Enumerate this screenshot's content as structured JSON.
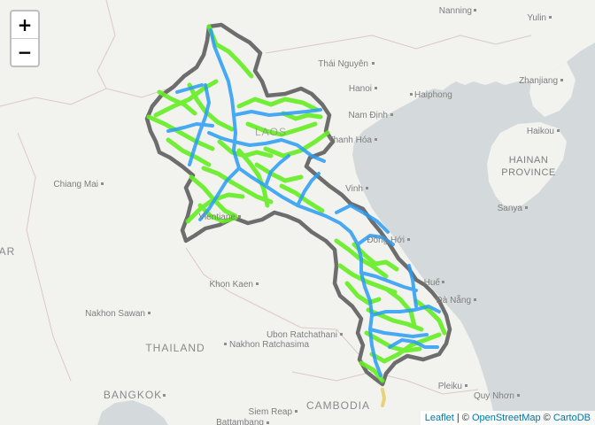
{
  "zoom": {
    "in_label": "+",
    "out_label": "−"
  },
  "attribution": {
    "leaflet": "Leaflet",
    "sep1": " | © ",
    "osm": "OpenStreetMap",
    "sep2": " © ",
    "carto": "CartoDB"
  },
  "labels": {
    "nanning": "Nanning",
    "yulin": "Yulin",
    "thai_nguyen": "Thái Nguyên",
    "hanoi": "Hanoi",
    "haiphong": "Haiphong",
    "zhanjiang": "Zhanjiang",
    "nam_dinh": "Nam Định",
    "haikou": "Haikou",
    "hainan_1": "HAINAN",
    "hainan_2": "PROVINCE",
    "thanh_hoa": "Thanh Hóa",
    "chiang_mai": "Chiang Mai",
    "vinh": "Vinh",
    "sanya": "Sanya",
    "vientiane": "Vientiane",
    "dong_hoi": "Đồng Hới",
    "khon_kaen": "Khon Kaen",
    "hue": "Huế",
    "da_nang": "Đà Nẵng",
    "nakhon_sawan": "Nakhon Sawan",
    "ubon": "Ubon Ratchathani",
    "thailand": "THAILAND",
    "nakhon_ratchasima": "Nakhon Ratchasima",
    "pleiku": "Pleiku",
    "quy_nhon": "Quy Nhơn",
    "bangkok": "BANGKOK",
    "siem_reap": "Siem Reap",
    "cambodia": "CAMBODIA",
    "battambang": "Battambang",
    "laos": "LAOS",
    "myanmar_fragment": "AR"
  },
  "colors": {
    "land": "#f2f2ef",
    "sea": "#d4dadc",
    "border": "#6d6d6d",
    "road_green": "#66ee22",
    "road_blue": "#2a9df4",
    "road_yellow": "#e8d27a"
  }
}
